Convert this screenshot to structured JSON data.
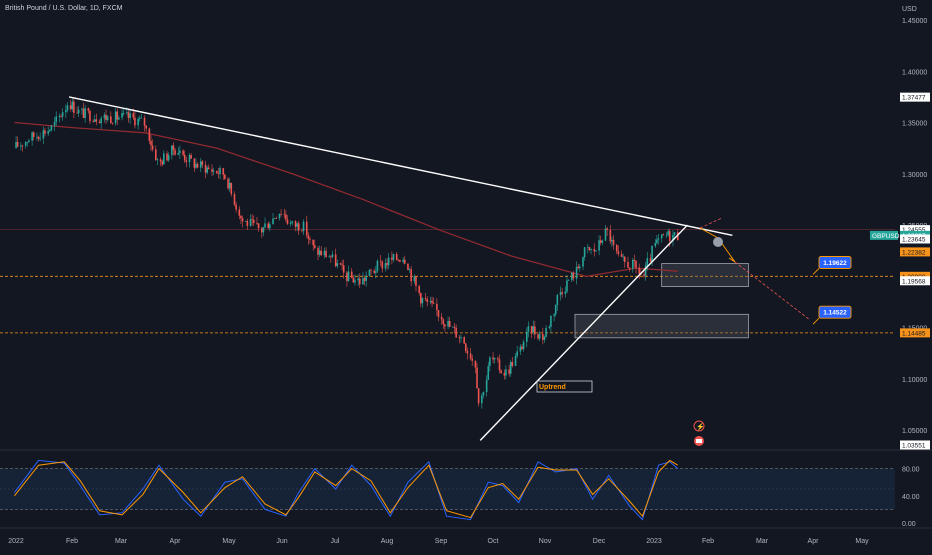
{
  "header": {
    "symbol_title": "British Pound / U.S. Dollar, 1D, FXCM"
  },
  "colors": {
    "background": "#131722",
    "up_candle": "#26a69a",
    "down_candle": "#ef5350",
    "ma_line": "#8f2a2f",
    "trendline": "#ffffff",
    "orange_level": "#f7931a",
    "blue_label": "#2962ff",
    "stoch_k": "#2962ff",
    "stoch_d": "#ff9800",
    "rsi_band_fill": "#1e3a5f"
  },
  "chart_data": [
    {
      "type": "candlestick",
      "symbol": "GBPUSD",
      "currency_label": "USD",
      "y_scale": "linear",
      "ylim": [
        1.0355,
        1.45
      ],
      "grid": false,
      "y_ticks": [
        "1.45000",
        "1.40000",
        "1.35000",
        "1.30000",
        "1.25000",
        "1.20000",
        "1.15000",
        "1.10000",
        "1.05000"
      ],
      "x_ticks": [
        "2022",
        "Feb",
        "Mar",
        "Apr",
        "May",
        "Jun",
        "Jul",
        "Aug",
        "Sep",
        "Oct",
        "Nov",
        "Dec",
        "2023",
        "Feb",
        "Mar",
        "Apr",
        "May"
      ],
      "price_labels": [
        {
          "text": "1.37477",
          "value": 1.37477,
          "style": "white"
        },
        {
          "text": "1.24555",
          "value": 1.24555,
          "style": "white"
        },
        {
          "text": "GBPUSD",
          "value": 1.23997,
          "style": "green-tag"
        },
        {
          "text": "1.23997",
          "value": 1.23997,
          "style": "green"
        },
        {
          "text": "15:55:35",
          "value": 1.2359,
          "style": "green-small"
        },
        {
          "text": "1.23645",
          "value": 1.23645,
          "style": "white"
        },
        {
          "text": "1.22382",
          "value": 1.22382,
          "style": "orange"
        },
        {
          "text": "1.20000",
          "value": 1.2,
          "style": "orange"
        },
        {
          "text": "1.19568",
          "value": 1.19568,
          "style": "white"
        },
        {
          "text": "1.14485",
          "value": 1.14485,
          "style": "orange"
        },
        {
          "text": "1.03551",
          "value": 1.03551,
          "style": "white"
        }
      ],
      "horizontal_levels": [
        {
          "value": 1.2,
          "style": "orange-dashed"
        },
        {
          "value": 1.14485,
          "style": "orange-dashed"
        }
      ],
      "series": [
        {
          "name": "GBPUSD",
          "kind": "ohlc_path",
          "x": [
            "2021-12-10",
            "2021-12-20",
            "2022-01-03",
            "2022-01-13",
            "2022-01-20",
            "2022-02-01",
            "2022-02-10",
            "2022-02-20",
            "2022-03-01",
            "2022-03-10",
            "2022-03-20",
            "2022-04-01",
            "2022-04-10",
            "2022-04-20",
            "2022-05-01",
            "2022-05-13",
            "2022-05-25",
            "2022-06-01",
            "2022-06-08",
            "2022-06-15",
            "2022-06-25",
            "2022-07-05",
            "2022-07-14",
            "2022-07-25",
            "2022-08-01",
            "2022-08-10",
            "2022-08-20",
            "2022-08-31",
            "2022-09-08",
            "2022-09-15",
            "2022-09-23",
            "2022-09-26",
            "2022-10-03",
            "2022-10-12",
            "2022-10-20",
            "2022-10-28",
            "2022-11-05",
            "2022-11-15",
            "2022-11-25",
            "2022-12-01",
            "2022-12-07",
            "2022-12-14",
            "2022-12-22",
            "2022-12-31",
            "2023-01-06",
            "2023-01-13",
            "2023-01-20",
            "2023-01-27"
          ],
          "values": [
            1.325,
            1.335,
            1.345,
            1.37,
            1.36,
            1.355,
            1.355,
            1.355,
            1.35,
            1.31,
            1.325,
            1.31,
            1.305,
            1.3,
            1.255,
            1.245,
            1.265,
            1.25,
            1.25,
            1.225,
            1.22,
            1.2,
            1.195,
            1.21,
            1.215,
            1.22,
            1.18,
            1.165,
            1.15,
            1.14,
            1.115,
            1.075,
            1.12,
            1.105,
            1.125,
            1.15,
            1.14,
            1.185,
            1.205,
            1.225,
            1.225,
            1.245,
            1.215,
            1.21,
            1.2,
            1.23,
            1.24,
            1.24
          ]
        },
        {
          "name": "MA",
          "kind": "line",
          "x": [
            "2021-12-10",
            "2022-01-15",
            "2022-03-01",
            "2022-04-15",
            "2022-06-01",
            "2022-07-15",
            "2022-09-01",
            "2022-10-15",
            "2022-12-01",
            "2023-01-01",
            "2023-01-27"
          ],
          "values": [
            1.35,
            1.345,
            1.34,
            1.325,
            1.3,
            1.275,
            1.245,
            1.22,
            1.2,
            1.208,
            1.205
          ]
        }
      ],
      "drawings": [
        {
          "type": "trendline",
          "from": [
            "2022-01-13",
            1.375
          ],
          "to": [
            "2023-03-02",
            1.24
          ]
        },
        {
          "type": "trendline",
          "from": [
            "2022-09-26",
            1.04
          ],
          "to": [
            "2023-02-02",
            1.25
          ]
        },
        {
          "type": "label",
          "text": "Uptrend",
          "at": [
            "2022-11-02",
            1.065
          ]
        },
        {
          "type": "zone",
          "from": [
            "2023-01-17",
            1.2125
          ],
          "to": [
            "2023-03-12",
            1.19
          ]
        },
        {
          "type": "zone",
          "from": [
            "2022-11-24",
            1.163
          ],
          "to": [
            "2023-03-12",
            1.14
          ]
        },
        {
          "type": "callout",
          "text": "1.19622",
          "at": [
            "2023-03-19",
            1.2135
          ]
        },
        {
          "type": "callout",
          "text": "1.14522",
          "at": [
            "2023-03-19",
            1.165
          ]
        }
      ]
    },
    {
      "type": "line",
      "indicator": "stochastic",
      "ylim": [
        0,
        100
      ],
      "y_ticks": [
        "80.00",
        "40.00",
        "0.00"
      ],
      "bands": [
        80,
        20
      ],
      "series": [
        {
          "name": "%K",
          "x": [
            "2021-12-10",
            "2021-12-25",
            "2022-01-10",
            "2022-01-20",
            "2022-02-01",
            "2022-02-15",
            "2022-02-28",
            "2022-03-10",
            "2022-03-25",
            "2022-04-05",
            "2022-04-20",
            "2022-05-01",
            "2022-05-15",
            "2022-05-28",
            "2022-06-05",
            "2022-06-15",
            "2022-06-28",
            "2022-07-08",
            "2022-07-20",
            "2022-08-01",
            "2022-08-12",
            "2022-08-25",
            "2022-09-05",
            "2022-09-20",
            "2022-10-01",
            "2022-10-10",
            "2022-10-20",
            "2022-11-01",
            "2022-11-12",
            "2022-11-25",
            "2022-12-05",
            "2022-12-15",
            "2022-12-28",
            "2023-01-05",
            "2023-01-15",
            "2023-01-22",
            "2023-01-27"
          ],
          "values": [
            45,
            92,
            88,
            55,
            12,
            15,
            50,
            85,
            35,
            10,
            60,
            65,
            20,
            10,
            45,
            80,
            50,
            85,
            55,
            10,
            60,
            90,
            10,
            5,
            60,
            55,
            30,
            90,
            75,
            80,
            35,
            70,
            25,
            5,
            85,
            90,
            80
          ]
        },
        {
          "name": "%D",
          "x": [
            "2021-12-10",
            "2021-12-25",
            "2022-01-10",
            "2022-01-20",
            "2022-02-01",
            "2022-02-15",
            "2022-02-28",
            "2022-03-10",
            "2022-03-25",
            "2022-04-05",
            "2022-04-20",
            "2022-05-01",
            "2022-05-15",
            "2022-05-28",
            "2022-06-05",
            "2022-06-15",
            "2022-06-28",
            "2022-07-08",
            "2022-07-20",
            "2022-08-01",
            "2022-08-12",
            "2022-08-25",
            "2022-09-05",
            "2022-09-20",
            "2022-10-01",
            "2022-10-10",
            "2022-10-20",
            "2022-11-01",
            "2022-11-12",
            "2022-11-25",
            "2022-12-05",
            "2022-12-15",
            "2022-12-28",
            "2023-01-05",
            "2023-01-15",
            "2023-01-22",
            "2023-01-27"
          ],
          "values": [
            40,
            85,
            90,
            62,
            18,
            12,
            42,
            80,
            45,
            15,
            52,
            68,
            28,
            12,
            38,
            75,
            55,
            80,
            62,
            15,
            52,
            85,
            18,
            8,
            52,
            58,
            35,
            82,
            78,
            78,
            42,
            65,
            32,
            10,
            75,
            92,
            85
          ]
        }
      ]
    }
  ]
}
